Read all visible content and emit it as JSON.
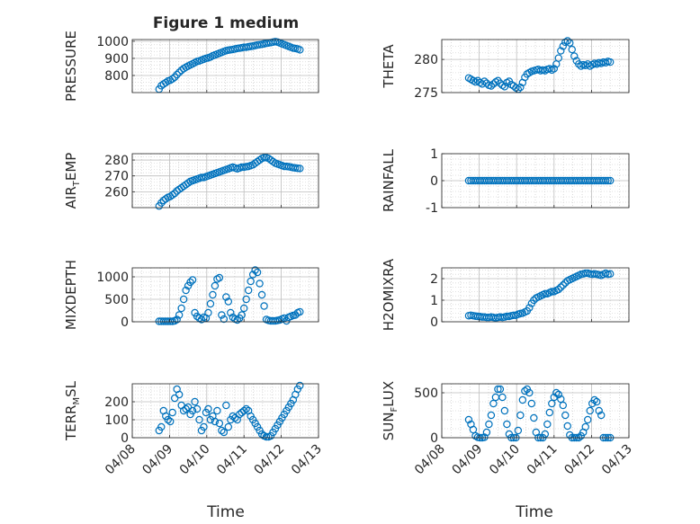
{
  "figure": {
    "title": "Figure 1 medium",
    "xlabel": "Time"
  },
  "chart_data": [
    {
      "type": "scatter",
      "ylabel": "PRESSURE",
      "ylim": [
        700,
        1010
      ],
      "yticks": [
        800,
        900,
        1000
      ],
      "ytick_labels": [
        "800",
        "900",
        "1000"
      ],
      "xlim": [
        0,
        5
      ],
      "xtick_labels": [
        "04/08",
        "04/09",
        "04/10",
        "04/11",
        "04/12",
        "04/13"
      ],
      "x": [
        0.72,
        0.78,
        0.84,
        0.9,
        0.96,
        1.02,
        1.08,
        1.14,
        1.2,
        1.26,
        1.32,
        1.38,
        1.44,
        1.5,
        1.56,
        1.62,
        1.68,
        1.74,
        1.8,
        1.86,
        1.92,
        1.98,
        2.04,
        2.1,
        2.16,
        2.22,
        2.28,
        2.34,
        2.4,
        2.46,
        2.52,
        2.58,
        2.64,
        2.7,
        2.76,
        2.82,
        2.88,
        2.94,
        3.0,
        3.06,
        3.12,
        3.18,
        3.24,
        3.3,
        3.36,
        3.42,
        3.48,
        3.54,
        3.6,
        3.66,
        3.72,
        3.78,
        3.84,
        3.9,
        3.96,
        4.02,
        4.08,
        4.14,
        4.2,
        4.26,
        4.32,
        4.38,
        4.44,
        4.5
      ],
      "y": [
        720,
        740,
        750,
        758,
        768,
        772,
        780,
        790,
        805,
        818,
        830,
        840,
        848,
        855,
        862,
        868,
        875,
        882,
        885,
        890,
        895,
        900,
        903,
        908,
        915,
        920,
        925,
        930,
        935,
        940,
        945,
        948,
        950,
        952,
        955,
        958,
        960,
        962,
        965,
        965,
        968,
        970,
        972,
        975,
        978,
        980,
        982,
        985,
        988,
        990,
        992,
        995,
        998,
        995,
        990,
        985,
        980,
        975,
        970,
        965,
        960,
        958,
        955,
        950
      ]
    },
    {
      "type": "scatter",
      "ylabel": "THETA",
      "ylim": [
        275,
        283
      ],
      "yticks": [
        275,
        280
      ],
      "ytick_labels": [
        "275",
        "280"
      ],
      "xlim": [
        0,
        5
      ],
      "xtick_labels": [
        "04/08",
        "04/09",
        "04/10",
        "04/11",
        "04/12",
        "04/13"
      ],
      "x": [
        0.72,
        0.78,
        0.84,
        0.9,
        0.96,
        1.02,
        1.08,
        1.14,
        1.2,
        1.26,
        1.32,
        1.38,
        1.44,
        1.5,
        1.56,
        1.62,
        1.68,
        1.74,
        1.8,
        1.86,
        1.92,
        1.98,
        2.04,
        2.1,
        2.16,
        2.22,
        2.28,
        2.34,
        2.4,
        2.46,
        2.52,
        2.58,
        2.64,
        2.7,
        2.76,
        2.82,
        2.88,
        2.94,
        3.0,
        3.06,
        3.12,
        3.18,
        3.24,
        3.3,
        3.36,
        3.42,
        3.48,
        3.54,
        3.6,
        3.66,
        3.72,
        3.78,
        3.84,
        3.9,
        3.96,
        4.02,
        4.08,
        4.14,
        4.2,
        4.26,
        4.32,
        4.38,
        4.44,
        4.5
      ],
      "y": [
        277.2,
        277.0,
        276.8,
        276.6,
        276.8,
        276.5,
        276.3,
        276.7,
        276.4,
        276.1,
        276.0,
        276.3,
        276.6,
        276.8,
        276.4,
        276.1,
        275.9,
        276.5,
        276.7,
        276.2,
        276.0,
        275.7,
        275.5,
        275.8,
        276.5,
        277.3,
        277.8,
        278.0,
        278.2,
        278.3,
        278.4,
        278.5,
        278.3,
        278.4,
        278.3,
        278.5,
        278.6,
        278.4,
        278.6,
        279.3,
        280.2,
        281.3,
        282.0,
        282.6,
        282.8,
        282.5,
        281.5,
        280.5,
        279.8,
        279.3,
        279.0,
        279.2,
        279.1,
        279.3,
        279.0,
        279.2,
        279.4,
        279.3,
        279.5,
        279.4,
        279.6,
        279.5,
        279.7,
        279.6
      ]
    },
    {
      "type": "scatter",
      "ylabel": "AIR_TEMP",
      "ylim": [
        250,
        284
      ],
      "yticks": [
        260,
        270,
        280
      ],
      "ytick_labels": [
        "260",
        "270",
        "280"
      ],
      "xlim": [
        0,
        5
      ],
      "xtick_labels": [
        "04/08",
        "04/09",
        "04/10",
        "04/11",
        "04/12",
        "04/13"
      ],
      "x": [
        0.72,
        0.78,
        0.84,
        0.9,
        0.96,
        1.02,
        1.08,
        1.14,
        1.2,
        1.26,
        1.32,
        1.38,
        1.44,
        1.5,
        1.56,
        1.62,
        1.68,
        1.74,
        1.8,
        1.86,
        1.92,
        1.98,
        2.04,
        2.1,
        2.16,
        2.22,
        2.28,
        2.34,
        2.4,
        2.46,
        2.52,
        2.58,
        2.64,
        2.7,
        2.76,
        2.82,
        2.88,
        2.94,
        3.0,
        3.06,
        3.12,
        3.18,
        3.24,
        3.3,
        3.36,
        3.42,
        3.48,
        3.54,
        3.6,
        3.66,
        3.72,
        3.78,
        3.84,
        3.9,
        3.96,
        4.02,
        4.08,
        4.14,
        4.2,
        4.26,
        4.32,
        4.38,
        4.44,
        4.5
      ],
      "y": [
        251,
        253,
        254.5,
        255.5,
        256.5,
        257,
        258,
        259,
        260.5,
        261.5,
        262.5,
        263.5,
        264.5,
        265.5,
        266.5,
        267,
        267.5,
        268,
        268.5,
        269,
        269,
        269.5,
        270,
        270.5,
        271,
        271.5,
        272,
        272.5,
        273,
        273.5,
        274,
        274.5,
        275,
        275.5,
        275,
        274.5,
        275,
        275.5,
        275.5,
        275.8,
        276,
        276.5,
        277,
        278,
        279,
        280,
        281,
        281.5,
        281.5,
        281,
        280,
        279,
        278,
        277.5,
        277,
        276.5,
        276,
        276,
        275.8,
        275.5,
        275.2,
        275,
        274.8,
        274.7
      ]
    },
    {
      "type": "scatter",
      "ylabel": "RAINFALL",
      "ylim": [
        -1,
        1
      ],
      "yticks": [
        -1,
        0,
        1
      ],
      "ytick_labels": [
        "-1",
        "0",
        "1"
      ],
      "xlim": [
        0,
        5
      ],
      "xtick_labels": [
        "04/08",
        "04/09",
        "04/10",
        "04/11",
        "04/12",
        "04/13"
      ],
      "x": [
        0.72,
        0.78,
        0.84,
        0.9,
        0.96,
        1.02,
        1.08,
        1.14,
        1.2,
        1.26,
        1.32,
        1.38,
        1.44,
        1.5,
        1.56,
        1.62,
        1.68,
        1.74,
        1.8,
        1.86,
        1.92,
        1.98,
        2.04,
        2.1,
        2.16,
        2.22,
        2.28,
        2.34,
        2.4,
        2.46,
        2.52,
        2.58,
        2.64,
        2.7,
        2.76,
        2.82,
        2.88,
        2.94,
        3.0,
        3.06,
        3.12,
        3.18,
        3.24,
        3.3,
        3.36,
        3.42,
        3.48,
        3.54,
        3.6,
        3.66,
        3.72,
        3.78,
        3.84,
        3.9,
        3.96,
        4.02,
        4.08,
        4.14,
        4.2,
        4.26,
        4.32,
        4.38,
        4.44,
        4.5
      ],
      "y": [
        0,
        0,
        0,
        0,
        0,
        0,
        0,
        0,
        0,
        0,
        0,
        0,
        0,
        0,
        0,
        0,
        0,
        0,
        0,
        0,
        0,
        0,
        0,
        0,
        0,
        0,
        0,
        0,
        0,
        0,
        0,
        0,
        0,
        0,
        0,
        0,
        0,
        0,
        0,
        0,
        0,
        0,
        0,
        0,
        0,
        0,
        0,
        0,
        0,
        0,
        0,
        0,
        0,
        0,
        0,
        0,
        0,
        0,
        0,
        0,
        0,
        0,
        0,
        0
      ]
    },
    {
      "type": "scatter",
      "ylabel": "MIXDEPTH",
      "ylim": [
        0,
        1200
      ],
      "yticks": [
        0,
        500,
        1000
      ],
      "ytick_labels": [
        "0",
        "500",
        "1000"
      ],
      "xlim": [
        0,
        5
      ],
      "xtick_labels": [
        "04/08",
        "04/09",
        "04/10",
        "04/11",
        "04/12",
        "04/13"
      ],
      "x": [
        0.72,
        0.78,
        0.84,
        0.9,
        0.96,
        1.02,
        1.08,
        1.14,
        1.2,
        1.26,
        1.32,
        1.38,
        1.44,
        1.5,
        1.56,
        1.62,
        1.68,
        1.74,
        1.8,
        1.86,
        1.92,
        1.98,
        2.04,
        2.1,
        2.16,
        2.22,
        2.28,
        2.34,
        2.4,
        2.46,
        2.52,
        2.58,
        2.64,
        2.7,
        2.76,
        2.82,
        2.88,
        2.94,
        3.0,
        3.06,
        3.12,
        3.18,
        3.24,
        3.3,
        3.36,
        3.42,
        3.48,
        3.54,
        3.6,
        3.66,
        3.72,
        3.78,
        3.84,
        3.9,
        3.96,
        4.02,
        4.08,
        4.14,
        4.2,
        4.26,
        4.32,
        4.38,
        4.44,
        4.5
      ],
      "y": [
        10,
        10,
        10,
        10,
        10,
        10,
        10,
        20,
        50,
        150,
        300,
        500,
        700,
        800,
        880,
        930,
        200,
        120,
        80,
        50,
        100,
        80,
        200,
        400,
        600,
        800,
        950,
        980,
        150,
        60,
        550,
        450,
        200,
        100,
        60,
        40,
        80,
        150,
        300,
        500,
        700,
        900,
        1050,
        1150,
        1100,
        850,
        600,
        350,
        50,
        30,
        20,
        20,
        20,
        30,
        40,
        60,
        80,
        20,
        100,
        120,
        140,
        150,
        200,
        220
      ]
    },
    {
      "type": "scatter",
      "ylabel": "H2OMIXRA",
      "ylim": [
        0,
        2.5
      ],
      "yticks": [
        0,
        1,
        2
      ],
      "ytick_labels": [
        "0",
        "1",
        "2"
      ],
      "xlim": [
        0,
        5
      ],
      "xtick_labels": [
        "04/08",
        "04/09",
        "04/10",
        "04/11",
        "04/12",
        "04/13"
      ],
      "x": [
        0.72,
        0.78,
        0.84,
        0.9,
        0.96,
        1.02,
        1.08,
        1.14,
        1.2,
        1.26,
        1.32,
        1.38,
        1.44,
        1.5,
        1.56,
        1.62,
        1.68,
        1.74,
        1.8,
        1.86,
        1.92,
        1.98,
        2.04,
        2.1,
        2.16,
        2.22,
        2.28,
        2.34,
        2.4,
        2.46,
        2.52,
        2.58,
        2.64,
        2.7,
        2.76,
        2.82,
        2.88,
        2.94,
        3.0,
        3.06,
        3.12,
        3.18,
        3.24,
        3.3,
        3.36,
        3.42,
        3.48,
        3.54,
        3.6,
        3.66,
        3.72,
        3.78,
        3.84,
        3.9,
        3.96,
        4.02,
        4.08,
        4.14,
        4.2,
        4.26,
        4.32,
        4.38,
        4.44,
        4.5
      ],
      "y": [
        0.28,
        0.3,
        0.28,
        0.26,
        0.25,
        0.24,
        0.22,
        0.22,
        0.2,
        0.2,
        0.22,
        0.2,
        0.18,
        0.2,
        0.22,
        0.2,
        0.22,
        0.25,
        0.25,
        0.28,
        0.3,
        0.3,
        0.35,
        0.38,
        0.4,
        0.45,
        0.5,
        0.65,
        0.85,
        1.0,
        1.1,
        1.15,
        1.2,
        1.25,
        1.3,
        1.3,
        1.35,
        1.4,
        1.4,
        1.45,
        1.5,
        1.6,
        1.7,
        1.8,
        1.9,
        1.95,
        2.0,
        2.05,
        2.1,
        2.15,
        2.2,
        2.22,
        2.25,
        2.25,
        2.22,
        2.2,
        2.22,
        2.2,
        2.18,
        2.15,
        2.2,
        2.25,
        2.2,
        2.22
      ]
    },
    {
      "type": "scatter",
      "ylabel": "TERR_MSL",
      "ylim": [
        0,
        300
      ],
      "yticks": [
        0,
        100,
        200
      ],
      "ytick_labels": [
        "0",
        "100",
        "200"
      ],
      "xlim": [
        0,
        5
      ],
      "xtick_labels": [
        "04/08",
        "04/09",
        "04/10",
        "04/11",
        "04/12",
        "04/13"
      ],
      "x": [
        0.72,
        0.78,
        0.84,
        0.9,
        0.96,
        1.02,
        1.08,
        1.14,
        1.2,
        1.26,
        1.32,
        1.38,
        1.44,
        1.5,
        1.56,
        1.62,
        1.68,
        1.74,
        1.8,
        1.86,
        1.92,
        1.98,
        2.04,
        2.1,
        2.16,
        2.22,
        2.28,
        2.34,
        2.4,
        2.46,
        2.52,
        2.58,
        2.64,
        2.7,
        2.76,
        2.82,
        2.88,
        2.94,
        3.0,
        3.06,
        3.12,
        3.18,
        3.24,
        3.3,
        3.36,
        3.42,
        3.48,
        3.54,
        3.6,
        3.66,
        3.72,
        3.78,
        3.84,
        3.9,
        3.96,
        4.02,
        4.08,
        4.14,
        4.2,
        4.26,
        4.32,
        4.38,
        4.44,
        4.5
      ],
      "y": [
        40,
        60,
        150,
        120,
        100,
        90,
        140,
        220,
        270,
        240,
        180,
        150,
        160,
        170,
        130,
        150,
        200,
        160,
        100,
        40,
        60,
        140,
        160,
        100,
        120,
        90,
        150,
        80,
        40,
        30,
        180,
        60,
        100,
        120,
        110,
        100,
        130,
        140,
        150,
        160,
        150,
        120,
        100,
        80,
        60,
        40,
        20,
        10,
        5,
        5,
        10,
        30,
        50,
        70,
        90,
        110,
        130,
        150,
        170,
        190,
        210,
        240,
        270,
        290
      ]
    },
    {
      "type": "scatter",
      "ylabel": "SUN_FLUX",
      "ylim": [
        0,
        600
      ],
      "yticks": [
        0,
        500
      ],
      "ytick_labels": [
        "0",
        "500"
      ],
      "xlim": [
        0,
        5
      ],
      "xtick_labels": [
        "04/08",
        "04/09",
        "04/10",
        "04/11",
        "04/12",
        "04/13"
      ],
      "x": [
        0.72,
        0.78,
        0.84,
        0.9,
        0.96,
        1.02,
        1.08,
        1.14,
        1.2,
        1.26,
        1.32,
        1.38,
        1.44,
        1.5,
        1.56,
        1.62,
        1.68,
        1.74,
        1.8,
        1.86,
        1.92,
        1.98,
        2.04,
        2.1,
        2.16,
        2.22,
        2.28,
        2.34,
        2.4,
        2.46,
        2.52,
        2.58,
        2.64,
        2.7,
        2.76,
        2.82,
        2.88,
        2.94,
        3.0,
        3.06,
        3.12,
        3.18,
        3.24,
        3.3,
        3.36,
        3.42,
        3.48,
        3.54,
        3.6,
        3.66,
        3.72,
        3.78,
        3.84,
        3.9,
        3.96,
        4.02,
        4.08,
        4.14,
        4.2,
        4.26,
        4.32,
        4.38,
        4.44,
        4.5
      ],
      "y": [
        200,
        150,
        90,
        20,
        5,
        0,
        0,
        5,
        60,
        150,
        250,
        380,
        450,
        540,
        540,
        450,
        300,
        150,
        40,
        0,
        0,
        0,
        80,
        250,
        420,
        520,
        540,
        500,
        380,
        220,
        60,
        0,
        0,
        0,
        40,
        150,
        280,
        380,
        450,
        500,
        480,
        430,
        360,
        250,
        130,
        30,
        0,
        0,
        0,
        0,
        20,
        60,
        120,
        200,
        300,
        380,
        420,
        400,
        300,
        250,
        0,
        0,
        0,
        0
      ]
    }
  ]
}
